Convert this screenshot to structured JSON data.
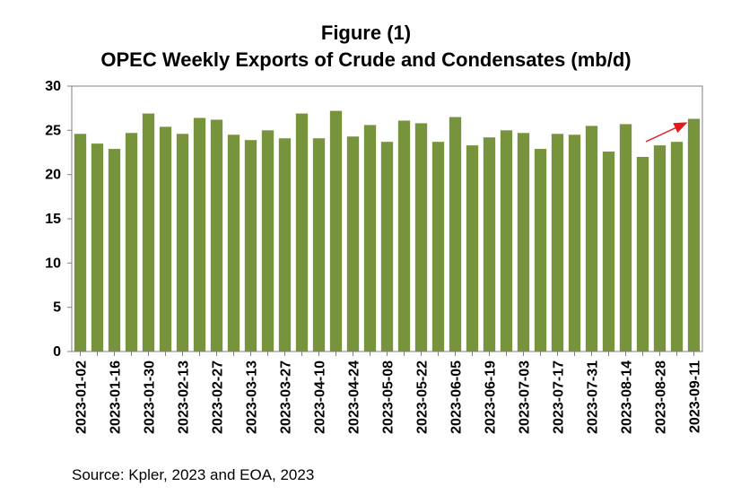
{
  "title": {
    "line1": "Figure (1)",
    "line2": "OPEC Weekly Exports of Crude and Condensates (mb/d)"
  },
  "source": "Source: Kpler, 2023 and EOA, 2023",
  "colors": {
    "bar": "#77933C",
    "axis": "#808080",
    "arrow": "#E31A1C"
  },
  "chart_data": {
    "type": "bar",
    "title": "OPEC Weekly Exports of Crude and Condensates (mb/d)",
    "xlabel": "",
    "ylabel": "",
    "ylim": [
      0,
      30
    ],
    "yticks": [
      0,
      5,
      10,
      15,
      20,
      25,
      30
    ],
    "grid": false,
    "legend": "none",
    "categories": [
      "2023-01-02",
      "2023-01-09",
      "2023-01-16",
      "2023-01-23",
      "2023-01-30",
      "2023-02-06",
      "2023-02-13",
      "2023-02-20",
      "2023-02-27",
      "2023-03-06",
      "2023-03-13",
      "2023-03-20",
      "2023-03-27",
      "2023-04-03",
      "2023-04-10",
      "2023-04-17",
      "2023-04-24",
      "2023-05-01",
      "2023-05-08",
      "2023-05-15",
      "2023-05-22",
      "2023-05-29",
      "2023-06-05",
      "2023-06-12",
      "2023-06-19",
      "2023-06-26",
      "2023-07-03",
      "2023-07-10",
      "2023-07-17",
      "2023-07-24",
      "2023-07-31",
      "2023-08-07",
      "2023-08-14",
      "2023-08-21",
      "2023-08-28",
      "2023-09-04",
      "2023-09-11"
    ],
    "tick_labels": [
      "2023-01-02",
      "2023-01-16",
      "2023-01-30",
      "2023-02-13",
      "2023-02-27",
      "2023-03-13",
      "2023-03-27",
      "2023-04-10",
      "2023-04-24",
      "2023-05-08",
      "2023-05-22",
      "2023-06-05",
      "2023-06-19",
      "2023-07-03",
      "2023-07-17",
      "2023-07-31",
      "2023-08-14",
      "2023-08-28",
      "2023-09-11"
    ],
    "values": [
      24.6,
      23.5,
      22.9,
      24.7,
      26.9,
      25.4,
      24.6,
      26.4,
      26.2,
      24.5,
      23.9,
      25.0,
      24.1,
      26.9,
      24.1,
      27.2,
      24.3,
      25.6,
      23.7,
      26.1,
      25.8,
      23.7,
      26.5,
      23.3,
      24.2,
      25.0,
      24.7,
      22.9,
      24.6,
      24.5,
      25.5,
      22.6,
      25.7,
      22.0,
      23.3,
      23.7,
      26.3
    ]
  }
}
